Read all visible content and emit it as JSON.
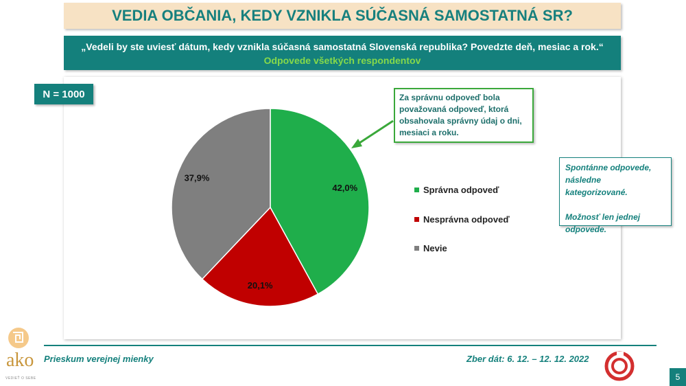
{
  "title": "VEDIA OBČANIA, KEDY VZNIKLA SÚČASNÁ SAMOSTATNÁ SR?",
  "question": "„Vedeli by ste uviesť dátum, kedy vznikla súčasná samostatná Slovenská republika? Povedzte deň, mesiac a rok.“",
  "subtitle": "Odpovede všetkých respondentov",
  "sample": "N = 1000",
  "callout_lines": [
    "Za správnu odpoveď bola",
    "považovaná odpoveď, ktorá",
    "obsahovala správny údaj o dni,",
    "mesiaci a roku."
  ],
  "note": {
    "line1": "Spontánne odpovede, následne kategorizované.",
    "line2": "Možnosť len jednej odpovede."
  },
  "footer": {
    "left": "Prieskum verejnej mienky",
    "right": "Zber dát: 6. 12. – 12. 12. 2022",
    "page": "5"
  },
  "logo": {
    "text": "ako",
    "tagline": "VEDIEŤ O SEBE"
  },
  "colors": {
    "teal": "#14807c",
    "green": "#1fae4b",
    "red": "#c00000",
    "gray": "#7f7f7f"
  },
  "chart_data": {
    "type": "pie",
    "categories": [
      "Správna odpoveď",
      "Nesprávna odpoveď",
      "Nevie"
    ],
    "values": [
      42.0,
      20.1,
      37.9
    ],
    "labels": [
      "42,0%",
      "20,1%",
      "37,9%"
    ],
    "colors": [
      "#1fae4b",
      "#c00000",
      "#7f7f7f"
    ],
    "legend_position": "right"
  }
}
